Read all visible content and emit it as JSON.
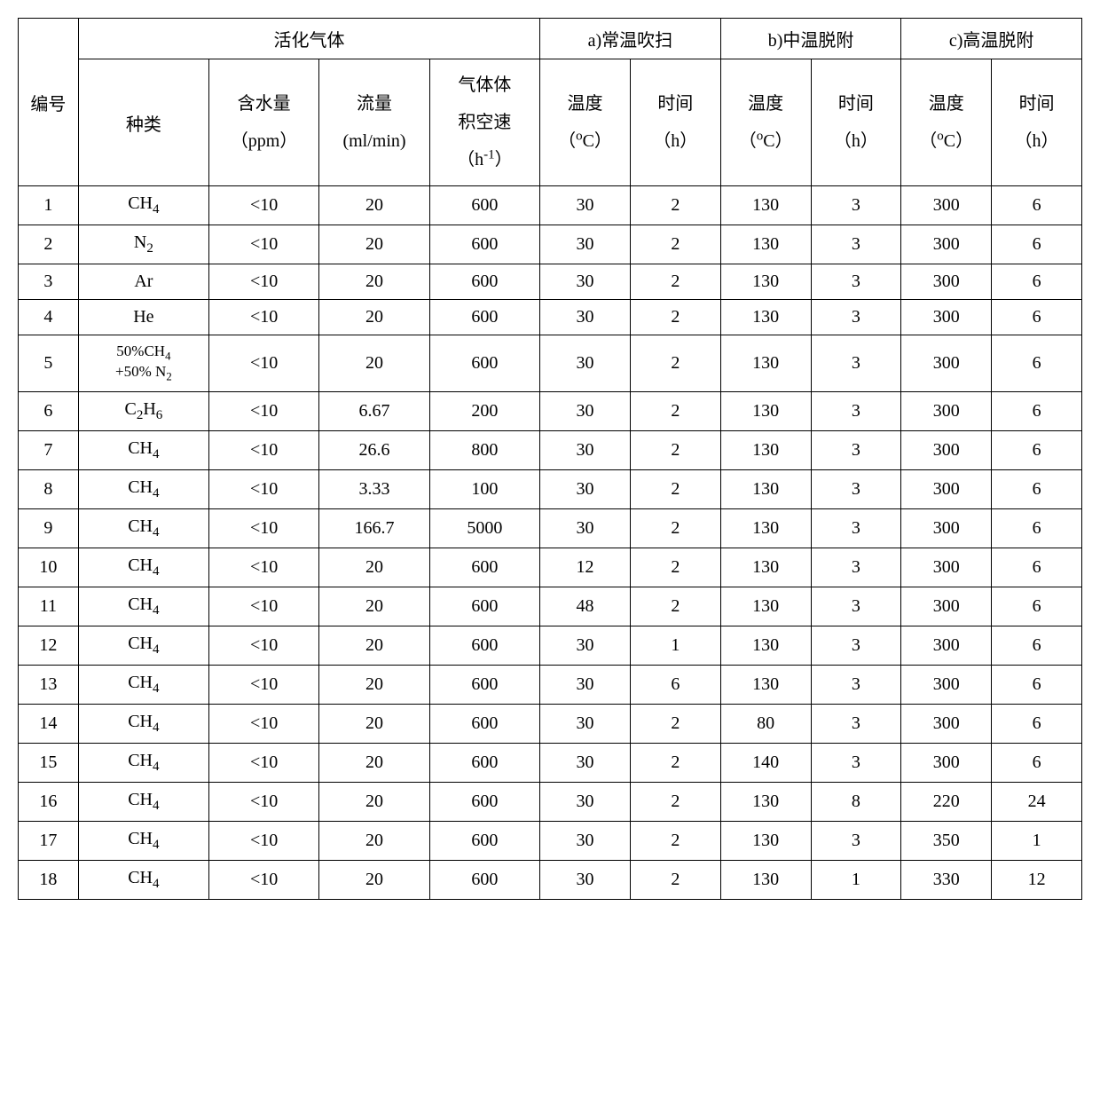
{
  "table": {
    "type": "table",
    "border_color": "#000000",
    "background_color": "#ffffff",
    "text_color": "#000000",
    "font_family": "Times New Roman, SimSun, serif",
    "font_size_pt": 15,
    "header": {
      "row1": {
        "id": "编号",
        "gas": "活化气体",
        "a": "a)常温吹扫",
        "b": "b)中温脱附",
        "c": "c)高温脱附"
      },
      "row2": {
        "species": "种类",
        "water_l1": "含水量",
        "water_l2": "（ppm）",
        "flow_l1": "流量",
        "flow_l2": "(ml/min)",
        "vel_l1": "气体体",
        "vel_l2": "积空速",
        "vel_l3_pre": "（h",
        "vel_l3_sup": "-1",
        "vel_l3_post": "）",
        "temp_l1": "温度",
        "temp_l2_pre": "（",
        "temp_l2_sup": "o",
        "temp_l2_post": "C）",
        "time_l1": "时间",
        "time_l2": "（h）"
      }
    },
    "rows": [
      {
        "id": "1",
        "species_html": "CH<sub>4</sub>",
        "water": "<10",
        "flow": "20",
        "vel": "600",
        "aT": "30",
        "at": "2",
        "bT": "130",
        "bt": "3",
        "cT": "300",
        "ct": "6"
      },
      {
        "id": "2",
        "species_html": "N<sub>2</sub>",
        "water": "<10",
        "flow": "20",
        "vel": "600",
        "aT": "30",
        "at": "2",
        "bT": "130",
        "bt": "3",
        "cT": "300",
        "ct": "6"
      },
      {
        "id": "3",
        "species_html": "Ar",
        "water": "<10",
        "flow": "20",
        "vel": "600",
        "aT": "30",
        "at": "2",
        "bT": "130",
        "bt": "3",
        "cT": "300",
        "ct": "6"
      },
      {
        "id": "4",
        "species_html": "He",
        "water": "<10",
        "flow": "20",
        "vel": "600",
        "aT": "30",
        "at": "2",
        "bT": "130",
        "bt": "3",
        "cT": "300",
        "ct": "6"
      },
      {
        "id": "5",
        "species_html": "50%CH<sub>4</sub><br>+50% N<sub>2</sub>",
        "water": "<10",
        "flow": "20",
        "vel": "600",
        "aT": "30",
        "at": "2",
        "bT": "130",
        "bt": "3",
        "cT": "300",
        "ct": "6"
      },
      {
        "id": "6",
        "species_html": "C<sub>2</sub>H<sub>6</sub>",
        "water": "<10",
        "flow": "6.67",
        "vel": "200",
        "aT": "30",
        "at": "2",
        "bT": "130",
        "bt": "3",
        "cT": "300",
        "ct": "6"
      },
      {
        "id": "7",
        "species_html": "CH<sub>4</sub>",
        "water": "<10",
        "flow": "26.6",
        "vel": "800",
        "aT": "30",
        "at": "2",
        "bT": "130",
        "bt": "3",
        "cT": "300",
        "ct": "6"
      },
      {
        "id": "8",
        "species_html": "CH<sub>4</sub>",
        "water": "<10",
        "flow": "3.33",
        "vel": "100",
        "aT": "30",
        "at": "2",
        "bT": "130",
        "bt": "3",
        "cT": "300",
        "ct": "6"
      },
      {
        "id": "9",
        "species_html": "CH<sub>4</sub>",
        "water": "<10",
        "flow": "166.7",
        "vel": "5000",
        "aT": "30",
        "at": "2",
        "bT": "130",
        "bt": "3",
        "cT": "300",
        "ct": "6"
      },
      {
        "id": "10",
        "species_html": "CH<sub>4</sub>",
        "water": "<10",
        "flow": "20",
        "vel": "600",
        "aT": "12",
        "at": "2",
        "bT": "130",
        "bt": "3",
        "cT": "300",
        "ct": "6"
      },
      {
        "id": "11",
        "species_html": "CH<sub>4</sub>",
        "water": "<10",
        "flow": "20",
        "vel": "600",
        "aT": "48",
        "at": "2",
        "bT": "130",
        "bt": "3",
        "cT": "300",
        "ct": "6"
      },
      {
        "id": "12",
        "species_html": "CH<sub>4</sub>",
        "water": "<10",
        "flow": "20",
        "vel": "600",
        "aT": "30",
        "at": "1",
        "bT": "130",
        "bt": "3",
        "cT": "300",
        "ct": "6"
      },
      {
        "id": "13",
        "species_html": "CH<sub>4</sub>",
        "water": "<10",
        "flow": "20",
        "vel": "600",
        "aT": "30",
        "at": "6",
        "bT": "130",
        "bt": "3",
        "cT": "300",
        "ct": "6"
      },
      {
        "id": "14",
        "species_html": "CH<sub>4</sub>",
        "water": "<10",
        "flow": "20",
        "vel": "600",
        "aT": "30",
        "at": "2",
        "bT": "80",
        "bt": "3",
        "cT": "300",
        "ct": "6"
      },
      {
        "id": "15",
        "species_html": "CH<sub>4</sub>",
        "water": "<10",
        "flow": "20",
        "vel": "600",
        "aT": "30",
        "at": "2",
        "bT": "140",
        "bt": "3",
        "cT": "300",
        "ct": "6"
      },
      {
        "id": "16",
        "species_html": "CH<sub>4</sub>",
        "water": "<10",
        "flow": "20",
        "vel": "600",
        "aT": "30",
        "at": "2",
        "bT": "130",
        "bt": "8",
        "cT": "220",
        "ct": "24"
      },
      {
        "id": "17",
        "species_html": "CH<sub>4</sub>",
        "water": "<10",
        "flow": "20",
        "vel": "600",
        "aT": "30",
        "at": "2",
        "bT": "130",
        "bt": "3",
        "cT": "350",
        "ct": "1"
      },
      {
        "id": "18",
        "species_html": "CH<sub>4</sub>",
        "water": "<10",
        "flow": "20",
        "vel": "600",
        "aT": "30",
        "at": "2",
        "bT": "130",
        "bt": "1",
        "cT": "330",
        "ct": "12"
      }
    ]
  }
}
